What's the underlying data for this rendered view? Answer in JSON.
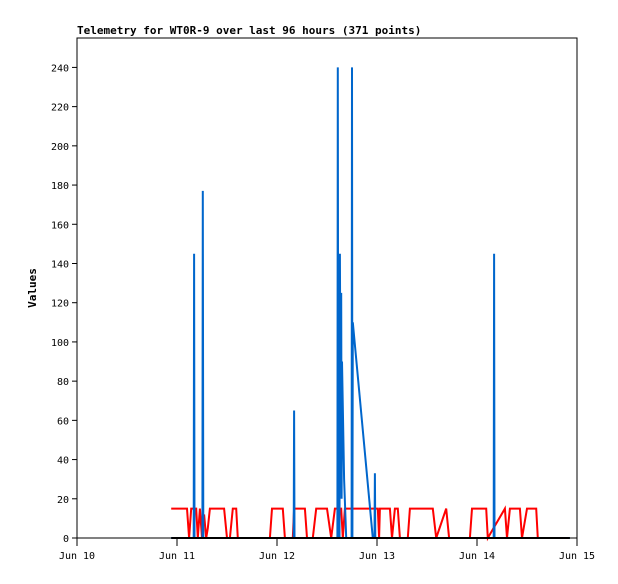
{
  "chart_data": {
    "type": "line",
    "title": "Telemetry for WT0R-9 over last 96 hours (371 points)",
    "xlabel": "",
    "ylabel": "Values",
    "x_unit": "hours since Jun 10 00:00",
    "xlim": [
      0,
      120
    ],
    "ylim": [
      0,
      255
    ],
    "x_ticks": [
      {
        "value": 0,
        "label": "Jun 10"
      },
      {
        "value": 24,
        "label": "Jun 11"
      },
      {
        "value": 48,
        "label": "Jun 12"
      },
      {
        "value": 72,
        "label": "Jun 13"
      },
      {
        "value": 96,
        "label": "Jun 14"
      },
      {
        "value": 120,
        "label": "Jun 15"
      }
    ],
    "y_ticks": [
      0,
      20,
      40,
      60,
      80,
      100,
      120,
      140,
      160,
      180,
      200,
      220,
      240
    ],
    "grid": false,
    "series": [
      {
        "name": "baseline",
        "color": "#000000",
        "points": [
          [
            22.6,
            0
          ],
          [
            118.3,
            0
          ]
        ]
      },
      {
        "name": "red",
        "color": "#ff0000",
        "points": [
          [
            22.6,
            15
          ],
          [
            26.4,
            15
          ],
          [
            26.9,
            0
          ],
          [
            27.4,
            15
          ],
          [
            28.6,
            15
          ],
          [
            29.0,
            0
          ],
          [
            29.5,
            15
          ],
          [
            30.0,
            0
          ],
          [
            30.5,
            12
          ],
          [
            31.0,
            0
          ],
          [
            31.4,
            5
          ],
          [
            31.9,
            15
          ],
          [
            35.3,
            15
          ],
          [
            36.0,
            0
          ],
          [
            36.7,
            0
          ],
          [
            37.4,
            15
          ],
          [
            38.2,
            15
          ],
          [
            38.6,
            0
          ],
          [
            39.1,
            0
          ],
          [
            46.3,
            0
          ],
          [
            46.8,
            15
          ],
          [
            49.4,
            15
          ],
          [
            49.9,
            0
          ],
          [
            51.8,
            0
          ],
          [
            52.1,
            15
          ],
          [
            54.7,
            15
          ],
          [
            55.2,
            0
          ],
          [
            56.6,
            0
          ],
          [
            57.4,
            15
          ],
          [
            60.0,
            15
          ],
          [
            61.0,
            0
          ],
          [
            61.9,
            15
          ],
          [
            63.4,
            15
          ],
          [
            63.8,
            0
          ],
          [
            64.3,
            15
          ],
          [
            72.2,
            15
          ],
          [
            72.5,
            0
          ],
          [
            72.7,
            15
          ],
          [
            75.1,
            15
          ],
          [
            75.6,
            0
          ],
          [
            76.3,
            15
          ],
          [
            77.0,
            15
          ],
          [
            77.5,
            0
          ],
          [
            79.4,
            0
          ],
          [
            79.9,
            15
          ],
          [
            85.4,
            15
          ],
          [
            86.2,
            0
          ],
          [
            88.6,
            15
          ],
          [
            89.3,
            0
          ],
          [
            94.3,
            0
          ],
          [
            94.8,
            15
          ],
          [
            98.2,
            15
          ],
          [
            98.6,
            0
          ],
          [
            102.7,
            15
          ],
          [
            103.2,
            0
          ],
          [
            103.9,
            15
          ],
          [
            106.3,
            15
          ],
          [
            106.8,
            0
          ],
          [
            108.0,
            15
          ],
          [
            110.2,
            15
          ],
          [
            110.6,
            0
          ]
        ]
      },
      {
        "name": "blue",
        "color": "#0066cc",
        "points": [
          [
            22.6,
            0
          ],
          [
            28.0,
            0
          ],
          [
            28.1,
            145
          ],
          [
            28.2,
            0
          ],
          [
            30.1,
            0
          ],
          [
            30.2,
            177
          ],
          [
            30.3,
            0
          ],
          [
            52.0,
            0
          ],
          [
            52.1,
            65
          ],
          [
            52.2,
            0
          ],
          [
            62.5,
            0
          ],
          [
            62.6,
            240
          ],
          [
            62.7,
            0
          ],
          [
            63.0,
            0
          ],
          [
            63.1,
            145
          ],
          [
            63.3,
            30
          ],
          [
            63.4,
            125
          ],
          [
            63.5,
            20
          ],
          [
            63.6,
            90
          ],
          [
            64.1,
            30
          ],
          [
            64.6,
            0
          ],
          [
            65.9,
            0
          ],
          [
            66.0,
            240
          ],
          [
            66.1,
            0
          ],
          [
            66.2,
            110
          ],
          [
            71.0,
            0
          ],
          [
            71.4,
            0
          ],
          [
            71.5,
            33
          ],
          [
            71.6,
            0
          ],
          [
            100.0,
            0
          ],
          [
            100.1,
            145
          ],
          [
            100.2,
            0
          ],
          [
            118.3,
            0
          ]
        ]
      }
    ]
  }
}
